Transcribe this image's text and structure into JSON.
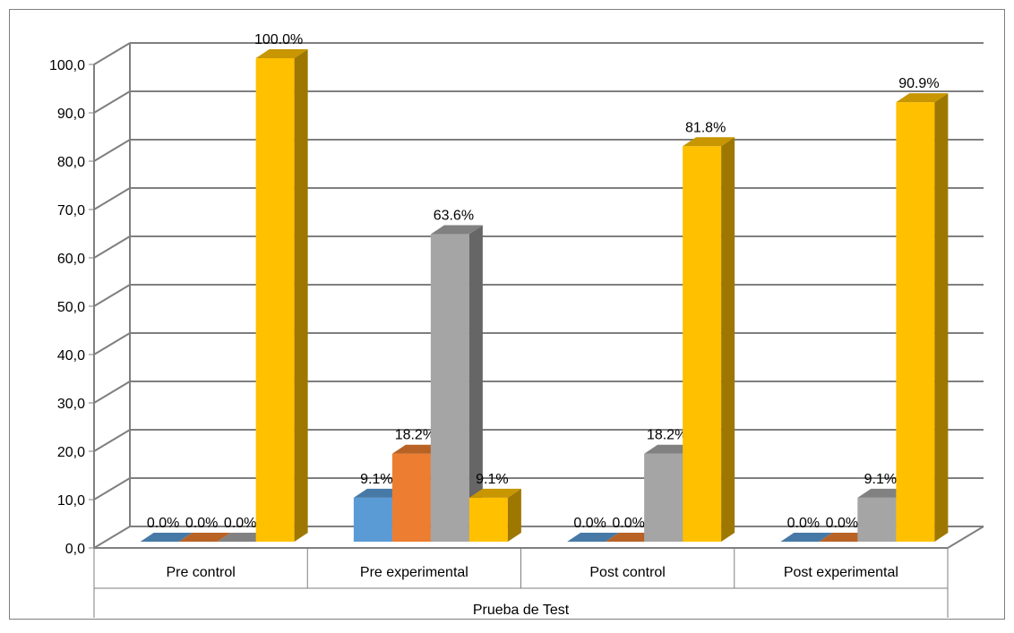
{
  "chart_data": {
    "type": "bar",
    "xlabel": "Prueba de Test",
    "categories": [
      "Pre control",
      "Pre experimental",
      "Post control",
      "Post experimental"
    ],
    "series": [
      {
        "values": [
          0.0,
          9.1,
          0.0,
          0.0
        ],
        "labels": [
          "0.0%",
          "9.1%",
          "0.0%",
          "0.0%"
        ],
        "color": "#5B9BD5"
      },
      {
        "values": [
          0.0,
          18.2,
          0.0,
          0.0
        ],
        "labels": [
          "0.0%",
          "18.2%",
          "0.0%",
          "0.0%"
        ],
        "color": "#ED7D31"
      },
      {
        "values": [
          0.0,
          63.6,
          18.2,
          9.1
        ],
        "labels": [
          "0.0%",
          "63.6%",
          "18.2%",
          "9.1%"
        ],
        "color": "#A5A5A5"
      },
      {
        "values": [
          100.0,
          9.1,
          81.8,
          90.9
        ],
        "labels": [
          "100.0%",
          "9.1%",
          "81.8%",
          "90.9%"
        ],
        "color": "#FFC000"
      }
    ],
    "ylim": [
      0,
      100
    ],
    "yticks": [
      "0,0",
      "10,0",
      "20,0",
      "30,0",
      "40,0",
      "50,0",
      "60,0",
      "70,0",
      "80,0",
      "90,0",
      "100,0"
    ],
    "grid": true,
    "legend": "none",
    "style": "3d-clustered-column"
  }
}
